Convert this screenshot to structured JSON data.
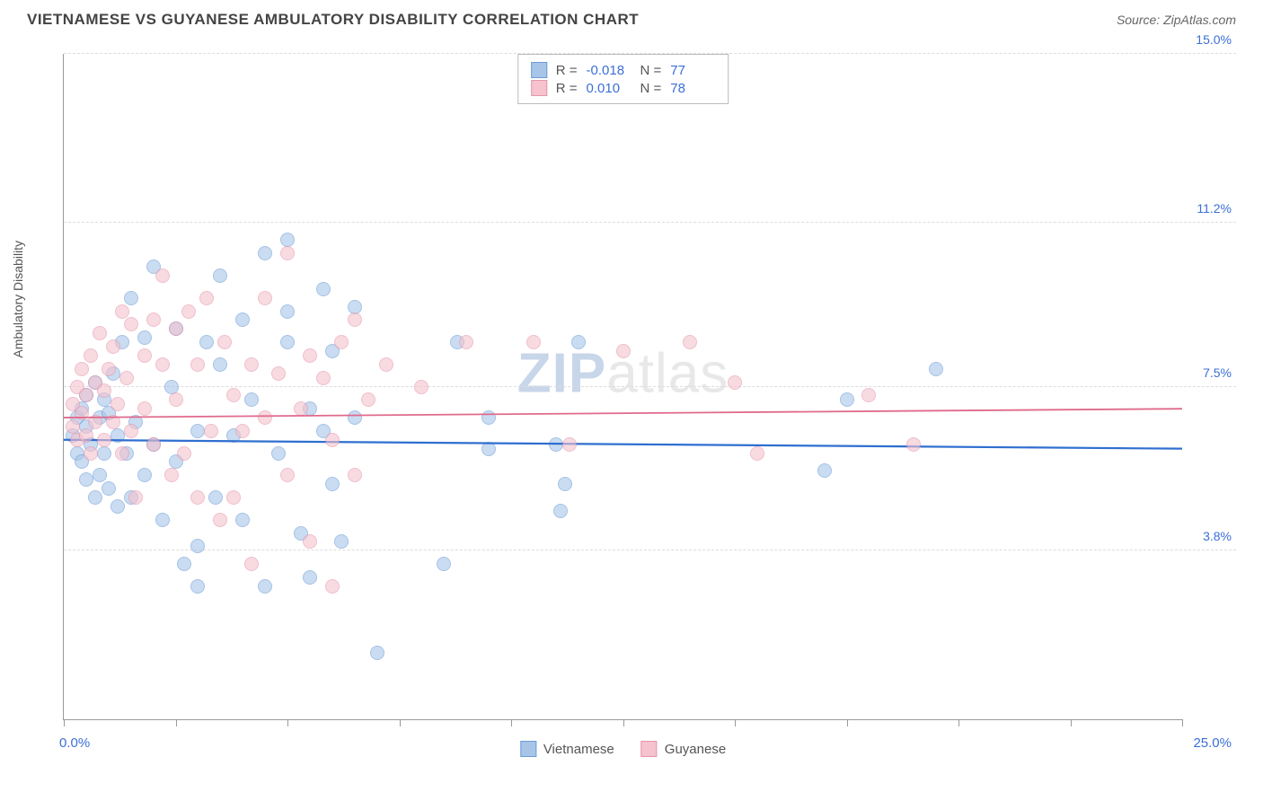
{
  "title": "VIETNAMESE VS GUYANESE AMBULATORY DISABILITY CORRELATION CHART",
  "source": "Source: ZipAtlas.com",
  "watermark": {
    "zip": "ZIP",
    "atlas": "atlas"
  },
  "ylabel": "Ambulatory Disability",
  "chart": {
    "type": "scatter",
    "xlim": [
      0,
      25
    ],
    "ylim": [
      0,
      15
    ],
    "xlim_labels": {
      "min": "0.0%",
      "max": "25.0%"
    },
    "xlim_color": "#3b6fd6",
    "ytick_values": [
      3.8,
      7.5,
      11.2,
      15.0
    ],
    "ytick_labels": [
      "3.8%",
      "7.5%",
      "11.2%",
      "15.0%"
    ],
    "ytick_color": "#3b6fd6",
    "xtick_values": [
      0,
      2.5,
      5,
      7.5,
      10,
      12.5,
      15,
      17.5,
      20,
      22.5,
      25
    ],
    "grid_color": "#dddddd",
    "background_color": "#ffffff",
    "marker_size": 16,
    "series": [
      {
        "name": "Vietnamese",
        "fill": "#a8c5e8",
        "stroke": "#6a9bd8",
        "trend_color": "#2f6fd0",
        "trend": {
          "y_start": 6.3,
          "y_end": 6.1
        },
        "R": "-0.018",
        "N": "77",
        "points": [
          [
            0.2,
            6.4
          ],
          [
            0.3,
            6.0
          ],
          [
            0.3,
            6.8
          ],
          [
            0.4,
            7.0
          ],
          [
            0.4,
            5.8
          ],
          [
            0.5,
            6.6
          ],
          [
            0.5,
            7.3
          ],
          [
            0.5,
            5.4
          ],
          [
            0.6,
            6.2
          ],
          [
            0.7,
            7.6
          ],
          [
            0.7,
            5.0
          ],
          [
            0.8,
            6.8
          ],
          [
            0.8,
            5.5
          ],
          [
            0.9,
            7.2
          ],
          [
            0.9,
            6.0
          ],
          [
            1.0,
            5.2
          ],
          [
            1.0,
            6.9
          ],
          [
            1.1,
            7.8
          ],
          [
            1.2,
            4.8
          ],
          [
            1.2,
            6.4
          ],
          [
            1.3,
            8.5
          ],
          [
            1.4,
            6.0
          ],
          [
            1.5,
            5.0
          ],
          [
            1.5,
            9.5
          ],
          [
            1.6,
            6.7
          ],
          [
            1.8,
            5.5
          ],
          [
            1.8,
            8.6
          ],
          [
            2.0,
            6.2
          ],
          [
            2.0,
            10.2
          ],
          [
            2.2,
            4.5
          ],
          [
            2.4,
            7.5
          ],
          [
            2.5,
            5.8
          ],
          [
            2.5,
            8.8
          ],
          [
            2.7,
            3.5
          ],
          [
            3.0,
            6.5
          ],
          [
            3.0,
            3.0
          ],
          [
            3.2,
            8.5
          ],
          [
            3.4,
            5.0
          ],
          [
            3.5,
            8.0
          ],
          [
            3.5,
            10.0
          ],
          [
            3.8,
            6.4
          ],
          [
            4.0,
            4.5
          ],
          [
            4.0,
            9.0
          ],
          [
            4.2,
            7.2
          ],
          [
            4.5,
            3.0
          ],
          [
            4.5,
            10.5
          ],
          [
            4.8,
            6.0
          ],
          [
            5.0,
            9.2
          ],
          [
            5.0,
            10.8
          ],
          [
            5.0,
            8.5
          ],
          [
            5.3,
            4.2
          ],
          [
            5.5,
            7.0
          ],
          [
            5.5,
            3.2
          ],
          [
            5.8,
            6.5
          ],
          [
            5.8,
            9.7
          ],
          [
            6.0,
            8.3
          ],
          [
            6.0,
            5.3
          ],
          [
            6.2,
            4.0
          ],
          [
            6.5,
            9.3
          ],
          [
            6.5,
            6.8
          ],
          [
            7.0,
            1.5
          ],
          [
            8.5,
            3.5
          ],
          [
            8.8,
            8.5
          ],
          [
            9.5,
            6.8
          ],
          [
            9.5,
            6.1
          ],
          [
            11.0,
            6.2
          ],
          [
            11.1,
            4.7
          ],
          [
            11.2,
            5.3
          ],
          [
            11.5,
            8.5
          ],
          [
            17.0,
            5.6
          ],
          [
            17.5,
            7.2
          ],
          [
            19.5,
            7.9
          ],
          [
            3.0,
            3.9
          ]
        ]
      },
      {
        "name": "Guyanese",
        "fill": "#f5c2ce",
        "stroke": "#e695ab",
        "trend_color": "#e06a8c",
        "trend": {
          "y_start": 6.8,
          "y_end": 7.0
        },
        "R": "0.010",
        "N": "78",
        "points": [
          [
            0.2,
            6.6
          ],
          [
            0.2,
            7.1
          ],
          [
            0.3,
            6.3
          ],
          [
            0.3,
            7.5
          ],
          [
            0.4,
            6.9
          ],
          [
            0.4,
            7.9
          ],
          [
            0.5,
            6.4
          ],
          [
            0.5,
            7.3
          ],
          [
            0.6,
            8.2
          ],
          [
            0.6,
            6.0
          ],
          [
            0.7,
            7.6
          ],
          [
            0.7,
            6.7
          ],
          [
            0.8,
            8.7
          ],
          [
            0.9,
            6.3
          ],
          [
            0.9,
            7.4
          ],
          [
            1.0,
            7.9
          ],
          [
            1.1,
            6.7
          ],
          [
            1.1,
            8.4
          ],
          [
            1.2,
            7.1
          ],
          [
            1.3,
            9.2
          ],
          [
            1.3,
            6.0
          ],
          [
            1.4,
            7.7
          ],
          [
            1.5,
            8.9
          ],
          [
            1.5,
            6.5
          ],
          [
            1.6,
            5.0
          ],
          [
            1.8,
            8.2
          ],
          [
            1.8,
            7.0
          ],
          [
            2.0,
            9.0
          ],
          [
            2.0,
            6.2
          ],
          [
            2.2,
            8.0
          ],
          [
            2.4,
            5.5
          ],
          [
            2.5,
            8.8
          ],
          [
            2.5,
            7.2
          ],
          [
            2.7,
            6.0
          ],
          [
            2.8,
            9.2
          ],
          [
            3.0,
            5.0
          ],
          [
            3.0,
            8.0
          ],
          [
            3.2,
            9.5
          ],
          [
            3.3,
            6.5
          ],
          [
            3.5,
            4.5
          ],
          [
            3.6,
            8.5
          ],
          [
            3.8,
            5.0
          ],
          [
            3.8,
            7.3
          ],
          [
            4.0,
            6.5
          ],
          [
            4.2,
            3.5
          ],
          [
            4.2,
            8.0
          ],
          [
            4.5,
            6.8
          ],
          [
            4.5,
            9.5
          ],
          [
            4.8,
            7.8
          ],
          [
            5.0,
            5.5
          ],
          [
            5.0,
            10.5
          ],
          [
            5.3,
            7.0
          ],
          [
            5.5,
            8.2
          ],
          [
            5.5,
            4.0
          ],
          [
            5.8,
            7.7
          ],
          [
            6.0,
            3.0
          ],
          [
            6.0,
            6.3
          ],
          [
            6.2,
            8.5
          ],
          [
            6.5,
            5.5
          ],
          [
            6.5,
            9.0
          ],
          [
            6.8,
            7.2
          ],
          [
            7.2,
            8.0
          ],
          [
            8.0,
            7.5
          ],
          [
            9.0,
            8.5
          ],
          [
            10.5,
            8.5
          ],
          [
            11.3,
            6.2
          ],
          [
            12.5,
            8.3
          ],
          [
            14.0,
            8.5
          ],
          [
            15.0,
            7.6
          ],
          [
            15.5,
            6.0
          ],
          [
            18.0,
            7.3
          ],
          [
            19.0,
            6.2
          ],
          [
            2.2,
            10.0
          ]
        ]
      }
    ],
    "stats_labels": {
      "R": "R =",
      "N": "N ="
    },
    "legend": [
      "Vietnamese",
      "Guyanese"
    ]
  }
}
